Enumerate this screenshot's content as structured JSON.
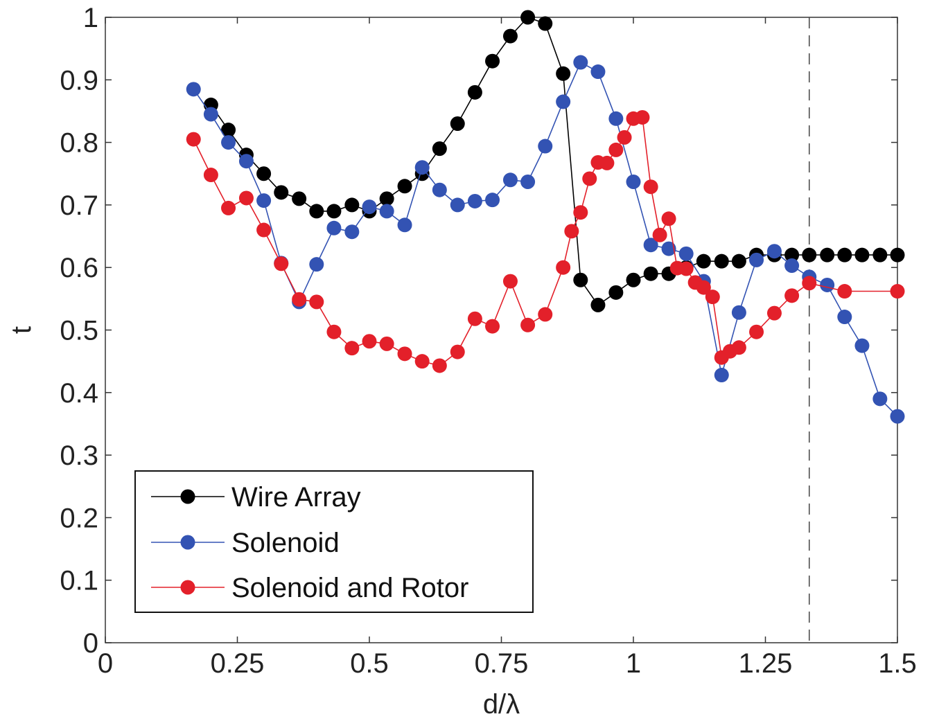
{
  "chart_data": {
    "type": "line",
    "title": "",
    "xlabel": "d/λ",
    "ylabel": "t",
    "xlim": [
      0,
      1.5
    ],
    "ylim": [
      0,
      1
    ],
    "xticks": [
      "0",
      "0.25",
      "0.5",
      "0.75",
      "1",
      "1.25",
      "1.5"
    ],
    "yticks": [
      "0",
      "0.1",
      "0.2",
      "0.3",
      "0.4",
      "0.5",
      "0.6",
      "0.7",
      "0.8",
      "0.9",
      "1"
    ],
    "grid": false,
    "legend_position": "bottom-left",
    "reference_line": {
      "x": 1.333,
      "style": "dashed"
    },
    "series": [
      {
        "name": "Wire Array",
        "color": "#000000",
        "x": [
          0.2,
          0.233,
          0.267,
          0.3,
          0.333,
          0.367,
          0.4,
          0.433,
          0.467,
          0.5,
          0.533,
          0.567,
          0.6,
          0.633,
          0.667,
          0.7,
          0.733,
          0.767,
          0.8,
          0.833,
          0.867,
          0.9,
          0.933,
          0.967,
          1.0,
          1.033,
          1.067,
          1.1,
          1.133,
          1.167,
          1.2,
          1.233,
          1.267,
          1.3,
          1.333,
          1.367,
          1.4,
          1.433,
          1.467,
          1.5
        ],
        "y": [
          0.86,
          0.82,
          0.78,
          0.75,
          0.72,
          0.71,
          0.69,
          0.69,
          0.7,
          0.69,
          0.71,
          0.73,
          0.75,
          0.79,
          0.83,
          0.88,
          0.93,
          0.97,
          1.0,
          0.99,
          0.91,
          0.58,
          0.54,
          0.56,
          0.58,
          0.59,
          0.59,
          0.6,
          0.61,
          0.61,
          0.61,
          0.62,
          0.62,
          0.62,
          0.62,
          0.62,
          0.62,
          0.62,
          0.62,
          0.62
        ]
      },
      {
        "name": "Solenoid",
        "color": "#3353b3",
        "x": [
          0.167,
          0.2,
          0.233,
          0.267,
          0.3,
          0.333,
          0.367,
          0.4,
          0.433,
          0.467,
          0.5,
          0.533,
          0.567,
          0.6,
          0.633,
          0.667,
          0.7,
          0.733,
          0.767,
          0.8,
          0.833,
          0.867,
          0.9,
          0.933,
          0.967,
          1.0,
          1.033,
          1.067,
          1.1,
          1.133,
          1.167,
          1.2,
          1.233,
          1.267,
          1.3,
          1.333,
          1.367,
          1.4,
          1.433,
          1.467,
          1.5
        ],
        "y": [
          0.885,
          0.845,
          0.8,
          0.77,
          0.707,
          0.607,
          0.545,
          0.605,
          0.663,
          0.657,
          0.697,
          0.69,
          0.668,
          0.76,
          0.724,
          0.7,
          0.706,
          0.708,
          0.74,
          0.737,
          0.794,
          0.865,
          0.928,
          0.913,
          0.838,
          0.737,
          0.636,
          0.63,
          0.622,
          0.578,
          0.428,
          0.528,
          0.612,
          0.626,
          0.603,
          0.585,
          0.572,
          0.521,
          0.475,
          0.39,
          0.362
        ]
      },
      {
        "name": "Solenoid and Rotor",
        "color": "#e3202a",
        "x": [
          0.167,
          0.2,
          0.233,
          0.267,
          0.3,
          0.333,
          0.367,
          0.4,
          0.433,
          0.467,
          0.5,
          0.533,
          0.567,
          0.6,
          0.633,
          0.667,
          0.7,
          0.733,
          0.767,
          0.8,
          0.833,
          0.867,
          0.883,
          0.9,
          0.917,
          0.933,
          0.95,
          0.967,
          0.983,
          1.0,
          1.017,
          1.033,
          1.05,
          1.067,
          1.083,
          1.1,
          1.117,
          1.133,
          1.15,
          1.167,
          1.183,
          1.2,
          1.233,
          1.267,
          1.3,
          1.333,
          1.4,
          1.5
        ],
        "y": [
          0.805,
          0.748,
          0.695,
          0.711,
          0.66,
          0.606,
          0.549,
          0.545,
          0.497,
          0.471,
          0.482,
          0.478,
          0.462,
          0.45,
          0.443,
          0.465,
          0.518,
          0.506,
          0.578,
          0.508,
          0.525,
          0.6,
          0.658,
          0.688,
          0.742,
          0.768,
          0.767,
          0.788,
          0.808,
          0.838,
          0.84,
          0.729,
          0.652,
          0.678,
          0.599,
          0.598,
          0.576,
          0.568,
          0.553,
          0.456,
          0.466,
          0.472,
          0.497,
          0.527,
          0.555,
          0.575,
          0.562,
          0.562
        ]
      }
    ]
  }
}
